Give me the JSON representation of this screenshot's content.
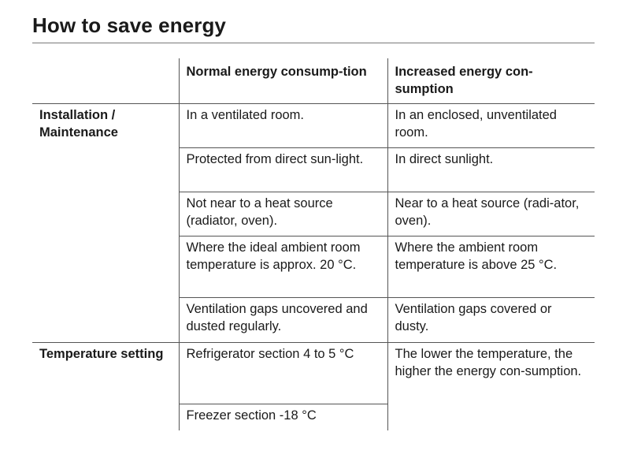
{
  "title": "How to save energy",
  "table": {
    "headers": {
      "empty": "",
      "normal": "Normal energy consump-tion",
      "increased": "Increased energy con-sumption"
    },
    "groups": [
      {
        "label": "Installation / Maintenance",
        "rows": [
          {
            "normal": "In a ventilated room.",
            "increased": "In an enclosed, unventilated room."
          },
          {
            "normal": "Protected from direct sun-light.",
            "increased": "In direct sunlight."
          },
          {
            "normal": "Not near to a heat source (radiator, oven).",
            "increased": "Near to a heat source (radi-ator, oven)."
          },
          {
            "normal": "Where the ideal ambient room temperature is approx. 20 °C.",
            "increased": "Where the ambient room temperature is above 25 °C."
          },
          {
            "normal": "Ventilation gaps uncovered and dusted regularly.",
            "increased": "Ventilation gaps covered or dusty."
          }
        ]
      },
      {
        "label": "Temperature setting",
        "rows": [
          {
            "normal": "Refrigerator section 4 to 5 °C",
            "increased": "The lower the temperature, the higher the energy con-sumption."
          },
          {
            "normal": "Freezer section -18 °C"
          }
        ]
      }
    ]
  }
}
